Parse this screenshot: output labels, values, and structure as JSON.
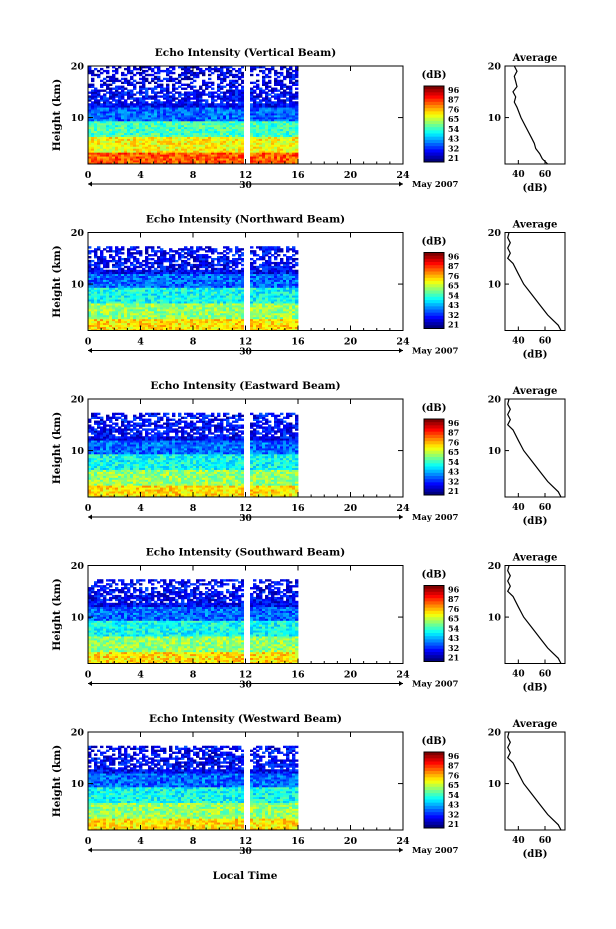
{
  "figure": {
    "date_label": "May 2007",
    "xaxis_title": "Local Time",
    "day_label": "30"
  },
  "colorbar": {
    "unit": "(dB)",
    "tick_labels": [
      "96",
      "87",
      "76",
      "65",
      "54",
      "43",
      "32",
      "21"
    ]
  },
  "average_panel": {
    "title": "Average",
    "xlabel": "(dB)",
    "x_tick_labels": [
      "40",
      "60"
    ]
  },
  "chart_data": [
    {
      "type": "heatmap",
      "title": "Echo Intensity (Vertical Beam)",
      "ylabel": "Height (km)",
      "xlim": [
        0,
        24
      ],
      "ylim": [
        1,
        20
      ],
      "x_ticks": [
        0,
        4,
        8,
        12,
        16,
        20,
        24
      ],
      "y_ticks": [
        10,
        20
      ],
      "data_end_hour": 16,
      "gap_hour": 12,
      "color_range_db": [
        21,
        96
      ],
      "layers_km": [
        {
          "from": 1,
          "to": 3,
          "db": 80
        },
        {
          "from": 3,
          "to": 6,
          "db": 68
        },
        {
          "from": 6,
          "to": 9,
          "db": 54
        },
        {
          "from": 9,
          "to": 12,
          "db": 38
        },
        {
          "from": 12,
          "to": 16,
          "db": 30
        },
        {
          "from": 16,
          "to": 20,
          "db": 28
        }
      ],
      "average_profile": {
        "height_km": [
          1,
          2,
          3,
          4,
          5,
          6,
          8,
          10,
          12,
          13,
          14,
          15,
          16,
          17,
          18,
          19,
          20
        ],
        "db": [
          62,
          58,
          56,
          53,
          52,
          50,
          46,
          42,
          39,
          37,
          38,
          36,
          39,
          38,
          37,
          39,
          37
        ]
      }
    },
    {
      "type": "heatmap",
      "title": "Echo Intensity (Northward Beam)",
      "ylabel": "Height (km)",
      "xlim": [
        0,
        24
      ],
      "ylim": [
        1,
        20
      ],
      "x_ticks": [
        0,
        4,
        8,
        12,
        16,
        20,
        24
      ],
      "y_ticks": [
        10,
        20
      ],
      "data_end_hour": 16,
      "gap_hour": 12,
      "color_range_db": [
        21,
        96
      ],
      "layers_km": [
        {
          "from": 1,
          "to": 3,
          "db": 70
        },
        {
          "from": 3,
          "to": 6,
          "db": 60
        },
        {
          "from": 6,
          "to": 9,
          "db": 50
        },
        {
          "from": 9,
          "to": 12,
          "db": 38
        },
        {
          "from": 12,
          "to": 17,
          "db": 30
        }
      ],
      "average_profile": {
        "height_km": [
          1,
          2,
          3,
          4,
          6,
          8,
          10,
          12,
          14,
          15,
          16,
          17,
          18,
          19,
          20
        ],
        "db": [
          72,
          70,
          66,
          62,
          56,
          50,
          44,
          40,
          36,
          32,
          34,
          32,
          34,
          32,
          33
        ]
      }
    },
    {
      "type": "heatmap",
      "title": "Echo Intensity (Eastward Beam)",
      "ylabel": "Height (km)",
      "xlim": [
        0,
        24
      ],
      "ylim": [
        1,
        20
      ],
      "x_ticks": [
        0,
        4,
        8,
        12,
        16,
        20,
        24
      ],
      "y_ticks": [
        10,
        20
      ],
      "data_end_hour": 16,
      "gap_hour": 12,
      "color_range_db": [
        21,
        96
      ],
      "layers_km": [
        {
          "from": 1,
          "to": 3,
          "db": 70
        },
        {
          "from": 3,
          "to": 6,
          "db": 60
        },
        {
          "from": 6,
          "to": 9,
          "db": 50
        },
        {
          "from": 9,
          "to": 12,
          "db": 38
        },
        {
          "from": 12,
          "to": 17,
          "db": 30
        }
      ],
      "average_profile": {
        "height_km": [
          1,
          2,
          3,
          4,
          6,
          8,
          10,
          12,
          14,
          15,
          16,
          17,
          18,
          19,
          20
        ],
        "db": [
          72,
          70,
          66,
          62,
          56,
          50,
          44,
          40,
          36,
          32,
          34,
          32,
          34,
          32,
          33
        ]
      }
    },
    {
      "type": "heatmap",
      "title": "Echo Intensity (Southward Beam)",
      "ylabel": "Height (km)",
      "xlim": [
        0,
        24
      ],
      "ylim": [
        1,
        20
      ],
      "x_ticks": [
        0,
        4,
        8,
        12,
        16,
        20,
        24
      ],
      "y_ticks": [
        10,
        20
      ],
      "data_end_hour": 16,
      "gap_hour": 12,
      "color_range_db": [
        21,
        96
      ],
      "layers_km": [
        {
          "from": 1,
          "to": 3,
          "db": 70
        },
        {
          "from": 3,
          "to": 6,
          "db": 60
        },
        {
          "from": 6,
          "to": 9,
          "db": 50
        },
        {
          "from": 9,
          "to": 12,
          "db": 38
        },
        {
          "from": 12,
          "to": 17,
          "db": 30
        }
      ],
      "average_profile": {
        "height_km": [
          1,
          2,
          3,
          4,
          6,
          8,
          10,
          12,
          14,
          15,
          16,
          17,
          18,
          19,
          20
        ],
        "db": [
          72,
          70,
          66,
          62,
          56,
          50,
          44,
          40,
          36,
          32,
          34,
          32,
          34,
          32,
          33
        ]
      }
    },
    {
      "type": "heatmap",
      "title": "Echo Intensity (Westward Beam)",
      "ylabel": "Height (km)",
      "xlim": [
        0,
        24
      ],
      "ylim": [
        1,
        20
      ],
      "x_ticks": [
        0,
        4,
        8,
        12,
        16,
        20,
        24
      ],
      "y_ticks": [
        10,
        20
      ],
      "data_end_hour": 16,
      "gap_hour": 12,
      "color_range_db": [
        21,
        96
      ],
      "layers_km": [
        {
          "from": 1,
          "to": 3,
          "db": 70
        },
        {
          "from": 3,
          "to": 6,
          "db": 60
        },
        {
          "from": 6,
          "to": 9,
          "db": 50
        },
        {
          "from": 9,
          "to": 12,
          "db": 38
        },
        {
          "from": 12,
          "to": 17,
          "db": 30
        }
      ],
      "average_profile": {
        "height_km": [
          1,
          2,
          3,
          4,
          6,
          8,
          10,
          12,
          14,
          15,
          16,
          17,
          18,
          19,
          20
        ],
        "db": [
          72,
          70,
          66,
          62,
          56,
          50,
          44,
          40,
          36,
          32,
          34,
          32,
          34,
          32,
          33
        ]
      }
    }
  ]
}
